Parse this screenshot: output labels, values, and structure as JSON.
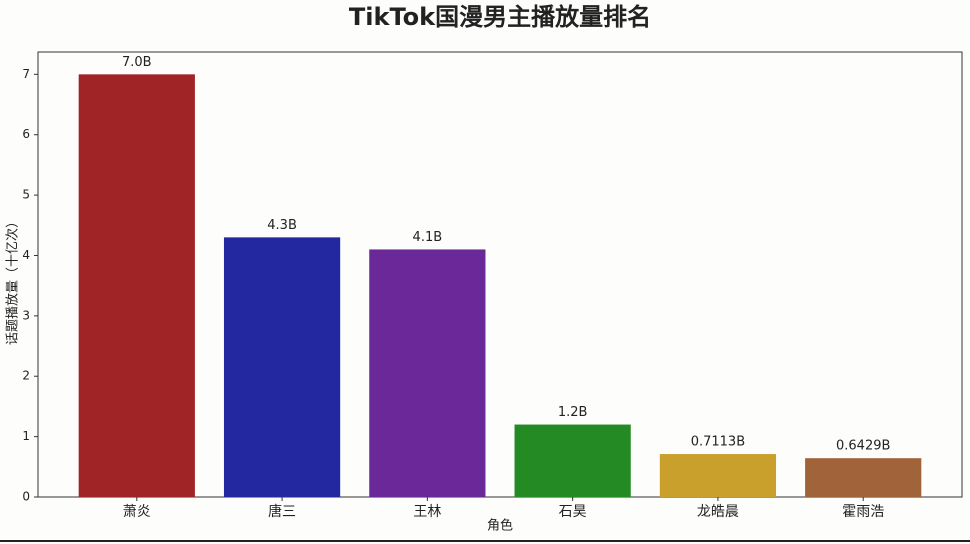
{
  "chart_data": {
    "type": "bar",
    "title": "TikTok国漫男主播放量排名",
    "x_label": "角色",
    "y_label": "话题播放量（十亿次）",
    "categories": [
      "萧炎",
      "唐三",
      "王林",
      "石昊",
      "龙皓晨",
      "霍雨浩"
    ],
    "values": [
      7.0,
      4.3,
      4.1,
      1.2,
      0.7113,
      0.6429
    ],
    "value_labels": [
      "7.0B",
      "4.3B",
      "4.1B",
      "1.2B",
      "0.7113B",
      "0.6429B"
    ],
    "colors": [
      "#a02426",
      "#2328a0",
      "#6a2898",
      "#248a24",
      "#c9a02b",
      "#a1643a"
    ],
    "ylim": [
      0,
      7.37
    ],
    "yticks": [
      0,
      1,
      2,
      3,
      4,
      5,
      6,
      7
    ],
    "grid": false
  }
}
